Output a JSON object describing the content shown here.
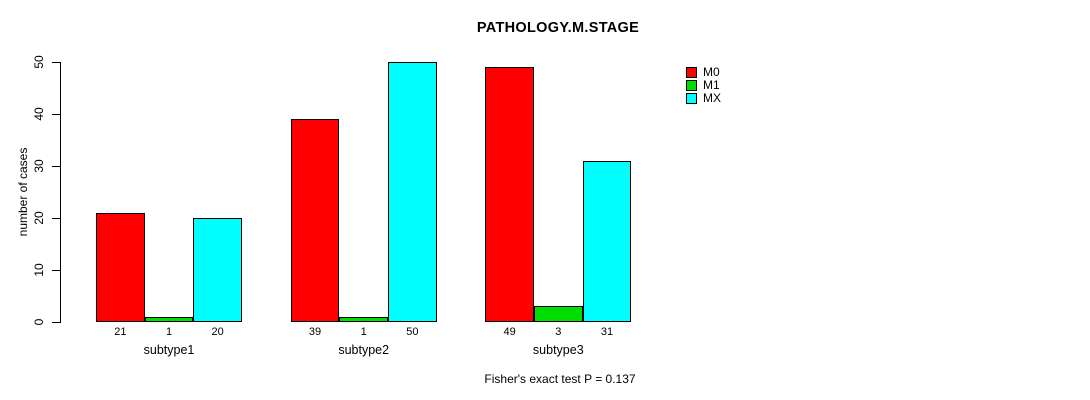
{
  "chart_data": {
    "type": "bar",
    "title": "PATHOLOGY.M.STAGE",
    "xlabel": "",
    "ylabel": "number of cases",
    "categories": [
      "subtype1",
      "subtype2",
      "subtype3"
    ],
    "series": [
      {
        "name": "M0",
        "color": "#FF0000",
        "values": [
          21,
          39,
          49
        ]
      },
      {
        "name": "M1",
        "color": "#00DD00",
        "values": [
          1,
          1,
          3
        ]
      },
      {
        "name": "MX",
        "color": "#00FFFF",
        "values": [
          20,
          50,
          31
        ]
      }
    ],
    "bar_value_labels": [
      [
        21,
        1,
        20
      ],
      [
        39,
        1,
        50
      ],
      [
        49,
        3,
        31
      ]
    ],
    "ylim": [
      0,
      50
    ],
    "yticks": [
      0,
      10,
      20,
      30,
      40,
      50
    ],
    "grid": false,
    "legend_position": "top-right",
    "legend_entries": [
      "M0",
      "M1",
      "MX"
    ],
    "annotation": "Fisher's exact test P = 0.137"
  }
}
